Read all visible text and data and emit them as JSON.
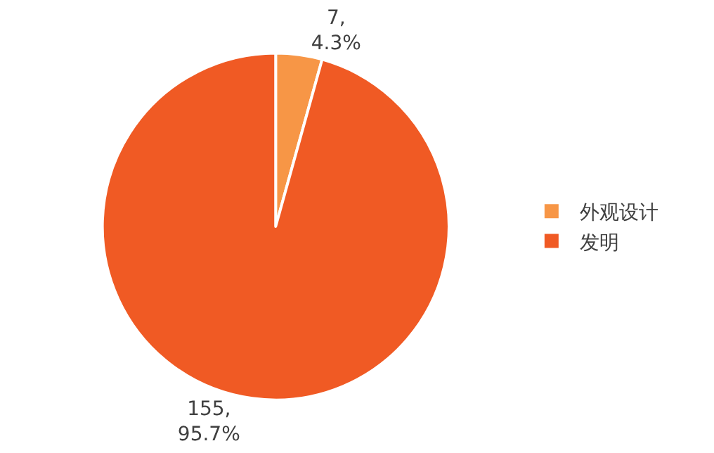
{
  "chart_data": {
    "type": "pie",
    "categories": [
      "外观设计",
      "发明"
    ],
    "values": [
      7,
      155
    ],
    "colors": [
      "#f79646",
      "#f05a24"
    ],
    "value_labels": [
      "7,\n4.3%",
      "155,\n95.7%"
    ],
    "legend": "right"
  }
}
